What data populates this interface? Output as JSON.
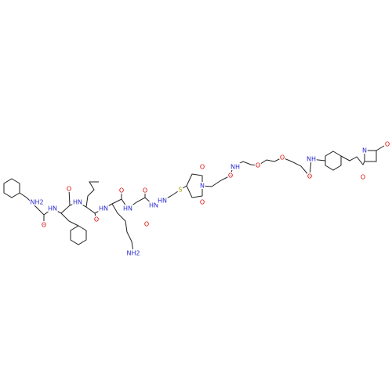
{
  "atoms": [
    {
      "label": "NH2"
    },
    {
      "label": "O"
    },
    {
      "label": "HN"
    },
    {
      "label": "O"
    },
    {
      "label": "HN"
    },
    {
      "label": "O"
    },
    {
      "label": "HN"
    },
    {
      "label": "O"
    },
    {
      "label": "HN"
    },
    {
      "label": "O"
    },
    {
      "label": "NH2"
    },
    {
      "label": "HN"
    },
    {
      "label": "O"
    },
    {
      "label": "HN"
    },
    {
      "label": "S"
    },
    {
      "label": "O"
    },
    {
      "label": "N"
    },
    {
      "label": "O"
    },
    {
      "label": "O"
    },
    {
      "label": "NH"
    },
    {
      "label": "O"
    },
    {
      "label": "O"
    },
    {
      "label": "O"
    },
    {
      "label": "NH"
    },
    {
      "label": "O"
    },
    {
      "label": "N"
    },
    {
      "label": "O"
    }
  ]
}
